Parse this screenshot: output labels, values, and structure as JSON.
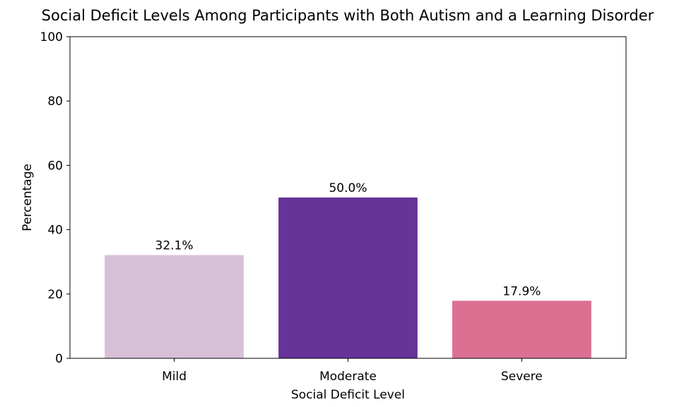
{
  "chart_data": {
    "type": "bar",
    "title": "Social Deficit Levels Among Participants with Both Autism and a Learning Disorder",
    "xlabel": "Social Deficit Level",
    "ylabel": "Percentage",
    "categories": [
      "Mild",
      "Moderate",
      "Severe"
    ],
    "values": [
      32.1,
      50.0,
      17.9
    ],
    "data_labels": [
      "32.1%",
      "50.0%",
      "17.9%"
    ],
    "colors": [
      "#d8bfd8",
      "#663399",
      "#db7093"
    ],
    "ylim": [
      0,
      100
    ],
    "yticks": [
      0,
      20,
      40,
      60,
      80,
      100
    ],
    "grid": false,
    "legend": "none"
  }
}
